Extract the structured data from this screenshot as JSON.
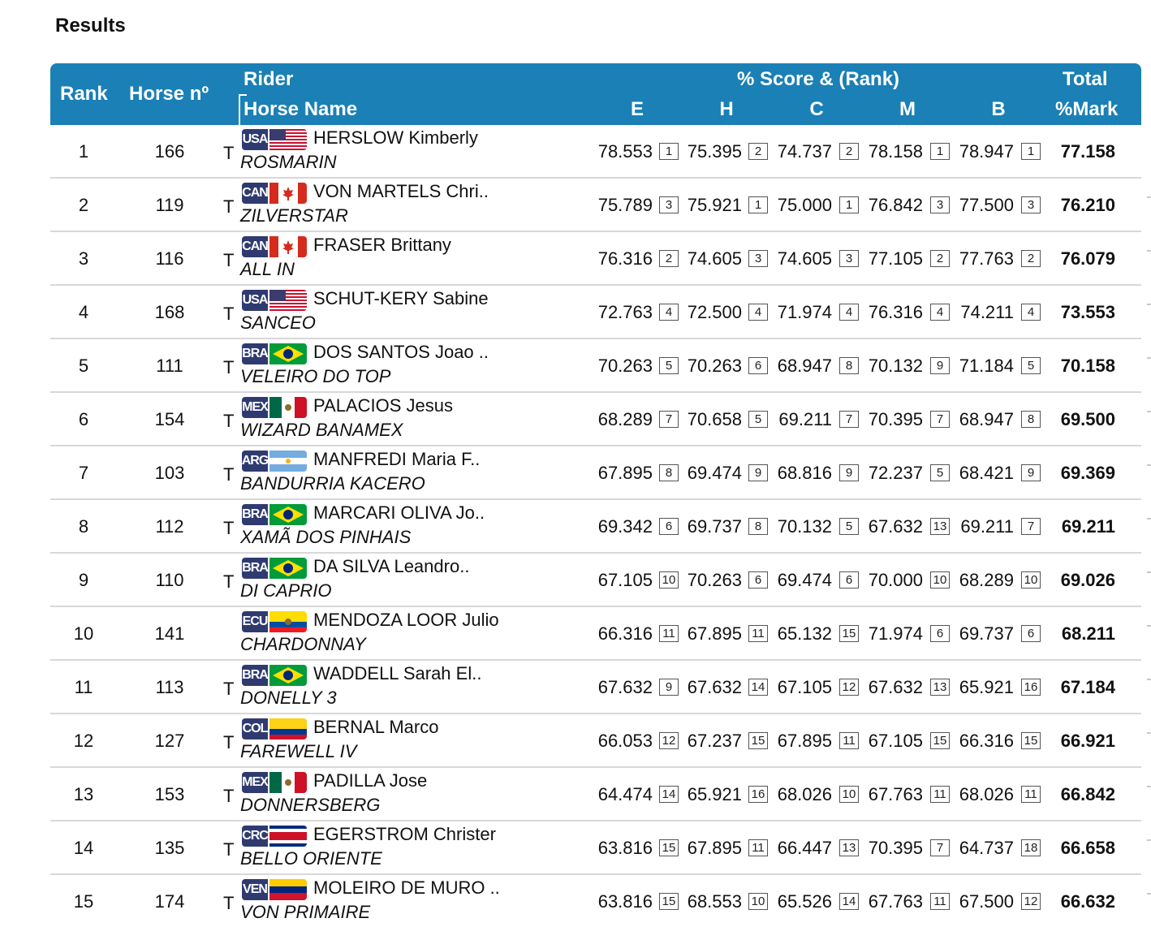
{
  "page": {
    "title": "Results"
  },
  "header": {
    "rank": "Rank",
    "horse_no": "Horse nº",
    "rider": "Rider",
    "horse_name": "Horse Name",
    "score_rank": "% Score & (Rank)",
    "judges": [
      "E",
      "H",
      "C",
      "M",
      "B"
    ],
    "total": "Total",
    "mark": "%Mark"
  },
  "rows": [
    {
      "rank": "1",
      "horse_no": "166",
      "t": "T",
      "country": "USA",
      "rider": "HERSLOW Kimberly",
      "horse": "ROSMARIN",
      "scores": [
        "78.553",
        "75.395",
        "74.737",
        "78.158",
        "78.947"
      ],
      "ranks": [
        "1",
        "2",
        "2",
        "1",
        "1"
      ],
      "total": "77.158"
    },
    {
      "rank": "2",
      "horse_no": "119",
      "t": "T",
      "country": "CAN",
      "rider": "VON MARTELS Chri..",
      "horse": "ZILVERSTAR",
      "scores": [
        "75.789",
        "75.921",
        "75.000",
        "76.842",
        "77.500"
      ],
      "ranks": [
        "3",
        "1",
        "1",
        "3",
        "3"
      ],
      "total": "76.210"
    },
    {
      "rank": "3",
      "horse_no": "116",
      "t": "T",
      "country": "CAN",
      "rider": "FRASER Brittany",
      "horse": "ALL IN",
      "scores": [
        "76.316",
        "74.605",
        "74.605",
        "77.105",
        "77.763"
      ],
      "ranks": [
        "2",
        "3",
        "3",
        "2",
        "2"
      ],
      "total": "76.079"
    },
    {
      "rank": "4",
      "horse_no": "168",
      "t": "T",
      "country": "USA",
      "rider": "SCHUT-KERY Sabine",
      "horse": "SANCEO",
      "scores": [
        "72.763",
        "72.500",
        "71.974",
        "76.316",
        "74.211"
      ],
      "ranks": [
        "4",
        "4",
        "4",
        "4",
        "4"
      ],
      "total": "73.553"
    },
    {
      "rank": "5",
      "horse_no": "111",
      "t": "T",
      "country": "BRA",
      "rider": "DOS SANTOS Joao ..",
      "horse": "VELEIRO DO TOP",
      "scores": [
        "70.263",
        "70.263",
        "68.947",
        "70.132",
        "71.184"
      ],
      "ranks": [
        "5",
        "6",
        "8",
        "9",
        "5"
      ],
      "total": "70.158"
    },
    {
      "rank": "6",
      "horse_no": "154",
      "t": "T",
      "country": "MEX",
      "rider": "PALACIOS Jesus",
      "horse": "WIZARD BANAMEX",
      "scores": [
        "68.289",
        "70.658",
        "69.211",
        "70.395",
        "68.947"
      ],
      "ranks": [
        "7",
        "5",
        "7",
        "7",
        "8"
      ],
      "total": "69.500"
    },
    {
      "rank": "7",
      "horse_no": "103",
      "t": "T",
      "country": "ARG",
      "rider": "MANFREDI Maria F..",
      "horse": "BANDURRIA KACERO",
      "scores": [
        "67.895",
        "69.474",
        "68.816",
        "72.237",
        "68.421"
      ],
      "ranks": [
        "8",
        "9",
        "9",
        "5",
        "9"
      ],
      "total": "69.369"
    },
    {
      "rank": "8",
      "horse_no": "112",
      "t": "T",
      "country": "BRA",
      "rider": "MARCARI OLIVA Jo..",
      "horse": "XAMÃ DOS PINHAIS",
      "scores": [
        "69.342",
        "69.737",
        "70.132",
        "67.632",
        "69.211"
      ],
      "ranks": [
        "6",
        "8",
        "5",
        "13",
        "7"
      ],
      "total": "69.211"
    },
    {
      "rank": "9",
      "horse_no": "110",
      "t": "T",
      "country": "BRA",
      "rider": "DA SILVA Leandro..",
      "horse": "DI CAPRIO",
      "scores": [
        "67.105",
        "70.263",
        "69.474",
        "70.000",
        "68.289"
      ],
      "ranks": [
        "10",
        "6",
        "6",
        "10",
        "10"
      ],
      "total": "69.026"
    },
    {
      "rank": "10",
      "horse_no": "141",
      "t": "",
      "country": "ECU",
      "rider": "MENDOZA LOOR Julio",
      "horse": "CHARDONNAY",
      "scores": [
        "66.316",
        "67.895",
        "65.132",
        "71.974",
        "69.737"
      ],
      "ranks": [
        "11",
        "11",
        "15",
        "6",
        "6"
      ],
      "total": "68.211"
    },
    {
      "rank": "11",
      "horse_no": "113",
      "t": "T",
      "country": "BRA",
      "rider": "WADDELL Sarah El..",
      "horse": "DONELLY 3",
      "scores": [
        "67.632",
        "67.632",
        "67.105",
        "67.632",
        "65.921"
      ],
      "ranks": [
        "9",
        "14",
        "12",
        "13",
        "16"
      ],
      "total": "67.184"
    },
    {
      "rank": "12",
      "horse_no": "127",
      "t": "T",
      "country": "COL",
      "rider": "BERNAL Marco",
      "horse": "FAREWELL IV",
      "scores": [
        "66.053",
        "67.237",
        "67.895",
        "67.105",
        "66.316"
      ],
      "ranks": [
        "12",
        "15",
        "11",
        "15",
        "15"
      ],
      "total": "66.921"
    },
    {
      "rank": "13",
      "horse_no": "153",
      "t": "T",
      "country": "MEX",
      "rider": "PADILLA Jose",
      "horse": "DONNERSBERG",
      "scores": [
        "64.474",
        "65.921",
        "68.026",
        "67.763",
        "68.026"
      ],
      "ranks": [
        "14",
        "16",
        "10",
        "11",
        "11"
      ],
      "total": "66.842"
    },
    {
      "rank": "14",
      "horse_no": "135",
      "t": "T",
      "country": "CRC",
      "rider": "EGERSTROM Christer",
      "horse": "BELLO ORIENTE",
      "scores": [
        "63.816",
        "67.895",
        "66.447",
        "70.395",
        "64.737"
      ],
      "ranks": [
        "15",
        "11",
        "13",
        "7",
        "18"
      ],
      "total": "66.658"
    },
    {
      "rank": "15",
      "horse_no": "174",
      "t": "T",
      "country": "VEN",
      "rider": "MOLEIRO DE MURO ..",
      "horse": "VON PRIMAIRE",
      "scores": [
        "63.816",
        "68.553",
        "65.526",
        "67.763",
        "67.500"
      ],
      "ranks": [
        "15",
        "10",
        "14",
        "11",
        "12"
      ],
      "total": "66.632"
    }
  ],
  "colors": {
    "header_bg": "#1a80b6",
    "header_text": "#ffffff",
    "row_border": "#d8d8d8",
    "country_code_bg": "#2f3b70"
  }
}
